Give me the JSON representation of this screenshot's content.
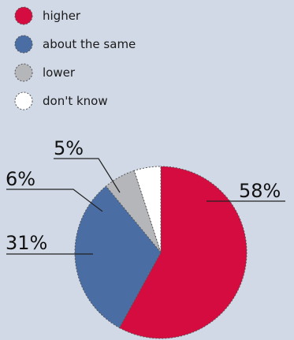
{
  "chart_data": {
    "type": "pie",
    "title": "",
    "legend_position": "top-left",
    "slices": [
      {
        "label": "higher",
        "value": 58,
        "value_label": "58%",
        "color": "#d40c3f"
      },
      {
        "label": "about the same",
        "value": 31,
        "value_label": "31%",
        "color": "#4a6ea4"
      },
      {
        "label": "lower",
        "value": 6,
        "value_label": "6%",
        "color": "#b4b6b9"
      },
      {
        "label": "don't know",
        "value": 5,
        "value_label": "5%",
        "color": "#ffffff"
      }
    ]
  },
  "colors": {
    "background": "#d1d9e6",
    "outline": "#555555"
  }
}
